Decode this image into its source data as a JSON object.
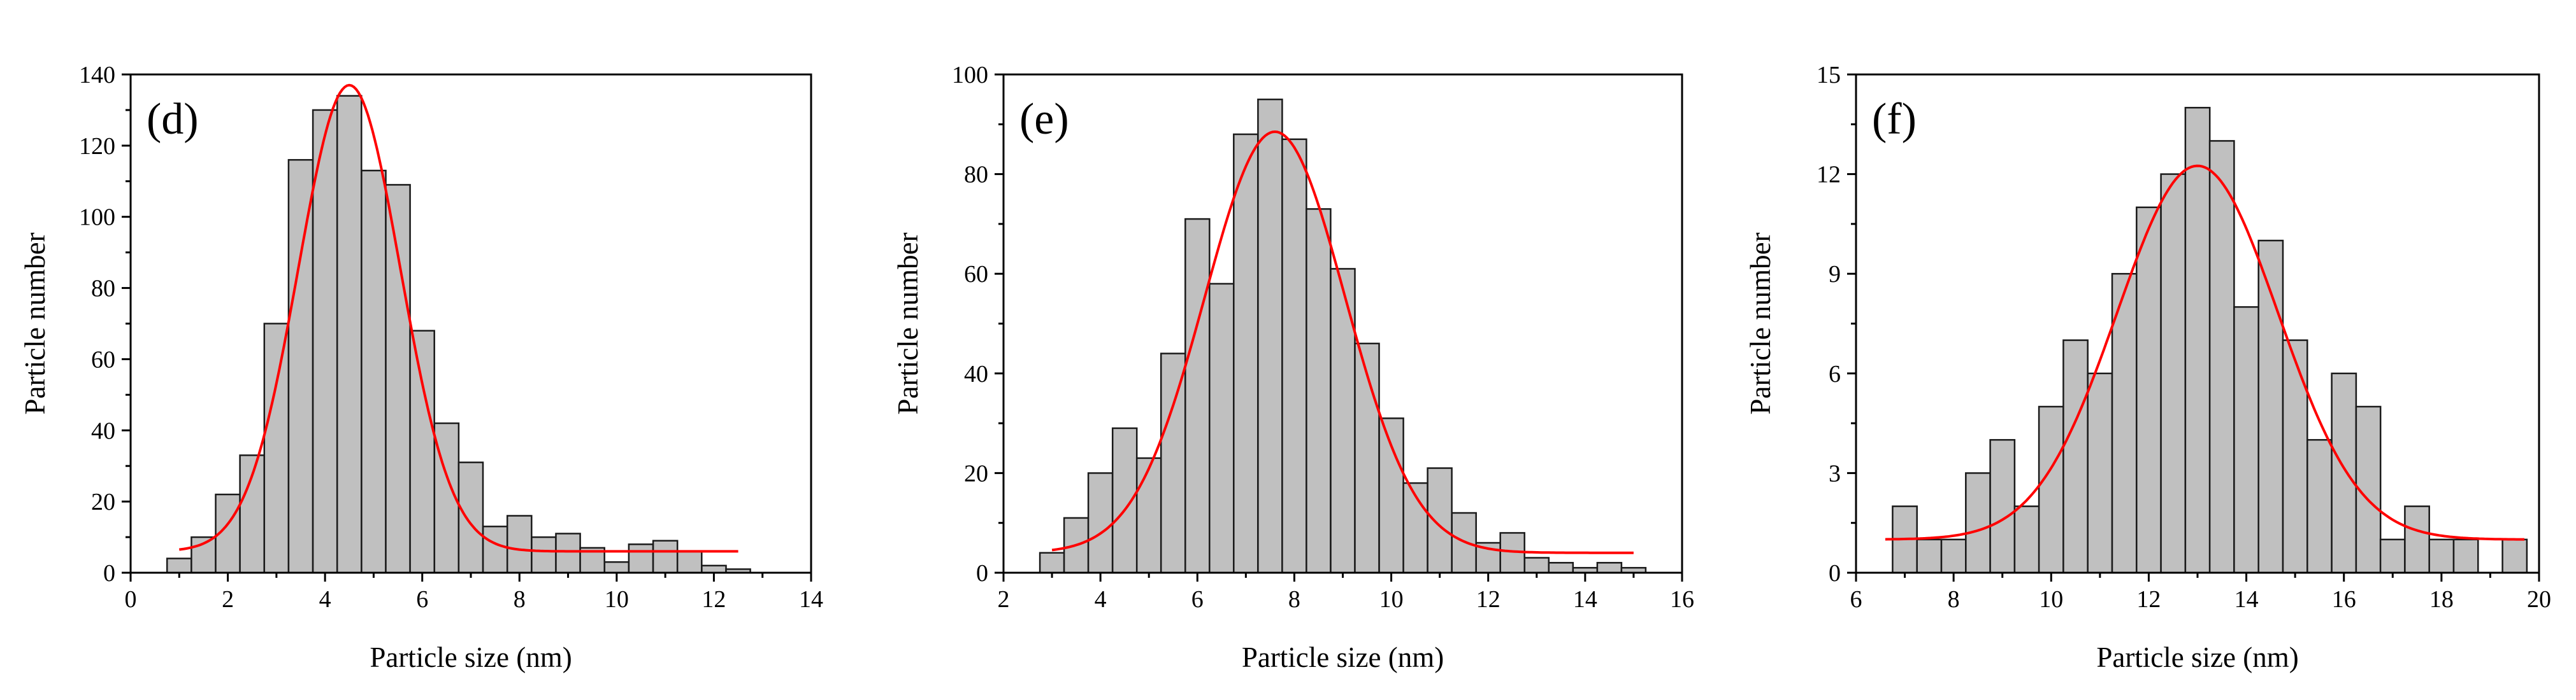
{
  "chart_data": [
    {
      "type": "bar",
      "panel_label": "(d)",
      "xlabel": "Particle size (nm)",
      "ylabel": "Particle number",
      "xlim": [
        0,
        14
      ],
      "ylim": [
        0,
        140
      ],
      "xticks": [
        0,
        2,
        4,
        6,
        8,
        10,
        12,
        14
      ],
      "yticks": [
        0,
        20,
        40,
        60,
        80,
        100,
        120,
        140
      ],
      "bin_width": 0.5,
      "bins": [
        {
          "x": 1.0,
          "value": 4
        },
        {
          "x": 1.5,
          "value": 10
        },
        {
          "x": 2.0,
          "value": 22
        },
        {
          "x": 2.5,
          "value": 33
        },
        {
          "x": 3.0,
          "value": 70
        },
        {
          "x": 3.5,
          "value": 116
        },
        {
          "x": 4.0,
          "value": 130
        },
        {
          "x": 4.5,
          "value": 134
        },
        {
          "x": 5.0,
          "value": 113
        },
        {
          "x": 5.5,
          "value": 109
        },
        {
          "x": 6.0,
          "value": 68
        },
        {
          "x": 6.5,
          "value": 42
        },
        {
          "x": 7.0,
          "value": 31
        },
        {
          "x": 7.5,
          "value": 13
        },
        {
          "x": 8.0,
          "value": 16
        },
        {
          "x": 8.5,
          "value": 10
        },
        {
          "x": 9.0,
          "value": 11
        },
        {
          "x": 9.5,
          "value": 7
        },
        {
          "x": 10.0,
          "value": 3
        },
        {
          "x": 10.5,
          "value": 8
        },
        {
          "x": 11.0,
          "value": 9
        },
        {
          "x": 11.5,
          "value": 6
        },
        {
          "x": 12.0,
          "value": 2
        },
        {
          "x": 12.5,
          "value": 1
        }
      ],
      "fit": {
        "type": "gaussian",
        "baseline": 6,
        "amplitude": 131,
        "center": 4.5,
        "sigma": 1.05,
        "x_range": [
          1.0,
          12.5
        ]
      }
    },
    {
      "type": "bar",
      "panel_label": "(e)",
      "xlabel": "Particle size (nm)",
      "ylabel": "Particle number",
      "xlim": [
        2,
        16
      ],
      "ylim": [
        0,
        100
      ],
      "xticks": [
        2,
        4,
        6,
        8,
        10,
        12,
        14,
        16
      ],
      "yticks": [
        0,
        20,
        40,
        60,
        80,
        100
      ],
      "bin_width": 0.5,
      "bins": [
        {
          "x": 3.0,
          "value": 4
        },
        {
          "x": 3.5,
          "value": 11
        },
        {
          "x": 4.0,
          "value": 20
        },
        {
          "x": 4.5,
          "value": 29
        },
        {
          "x": 5.0,
          "value": 23
        },
        {
          "x": 5.5,
          "value": 44
        },
        {
          "x": 6.0,
          "value": 71
        },
        {
          "x": 6.5,
          "value": 58
        },
        {
          "x": 7.0,
          "value": 88
        },
        {
          "x": 7.5,
          "value": 95
        },
        {
          "x": 8.0,
          "value": 87
        },
        {
          "x": 8.5,
          "value": 73
        },
        {
          "x": 9.0,
          "value": 61
        },
        {
          "x": 9.5,
          "value": 46
        },
        {
          "x": 10.0,
          "value": 31
        },
        {
          "x": 10.5,
          "value": 18
        },
        {
          "x": 11.0,
          "value": 21
        },
        {
          "x": 11.5,
          "value": 12
        },
        {
          "x": 12.0,
          "value": 6
        },
        {
          "x": 12.5,
          "value": 8
        },
        {
          "x": 13.0,
          "value": 3
        },
        {
          "x": 13.5,
          "value": 2
        },
        {
          "x": 14.0,
          "value": 1
        },
        {
          "x": 14.5,
          "value": 2
        },
        {
          "x": 15.0,
          "value": 1
        }
      ],
      "fit": {
        "type": "gaussian",
        "baseline": 4,
        "amplitude": 84.5,
        "center": 7.6,
        "sigma": 1.45,
        "x_range": [
          3.0,
          15.0
        ]
      }
    },
    {
      "type": "bar",
      "panel_label": "(f)",
      "xlabel": "Particle size (nm)",
      "ylabel": "Particle number",
      "xlim": [
        6,
        20
      ],
      "ylim": [
        0,
        15
      ],
      "xticks": [
        6,
        8,
        10,
        12,
        14,
        16,
        18,
        20
      ],
      "yticks": [
        0,
        3,
        6,
        9,
        12,
        15
      ],
      "bin_width": 0.5,
      "bins": [
        {
          "x": 7.0,
          "value": 2
        },
        {
          "x": 7.5,
          "value": 1
        },
        {
          "x": 8.0,
          "value": 1
        },
        {
          "x": 8.5,
          "value": 3
        },
        {
          "x": 9.0,
          "value": 4
        },
        {
          "x": 9.5,
          "value": 2
        },
        {
          "x": 10.0,
          "value": 5
        },
        {
          "x": 10.5,
          "value": 7
        },
        {
          "x": 11.0,
          "value": 6
        },
        {
          "x": 11.5,
          "value": 9
        },
        {
          "x": 12.0,
          "value": 11
        },
        {
          "x": 12.5,
          "value": 12
        },
        {
          "x": 13.0,
          "value": 14
        },
        {
          "x": 13.5,
          "value": 13
        },
        {
          "x": 14.0,
          "value": 8
        },
        {
          "x": 14.5,
          "value": 10
        },
        {
          "x": 15.0,
          "value": 7
        },
        {
          "x": 15.5,
          "value": 4
        },
        {
          "x": 16.0,
          "value": 6
        },
        {
          "x": 16.5,
          "value": 5
        },
        {
          "x": 17.0,
          "value": 1
        },
        {
          "x": 17.5,
          "value": 2
        },
        {
          "x": 18.0,
          "value": 1
        },
        {
          "x": 18.5,
          "value": 1
        },
        {
          "x": 19.5,
          "value": 1
        }
      ],
      "fit": {
        "type": "gaussian",
        "baseline": 1,
        "amplitude": 11.25,
        "center": 13.0,
        "sigma": 1.65,
        "x_range": [
          6.6,
          19.7
        ]
      }
    }
  ],
  "colors": {
    "bar_fill": "#c0c0c0",
    "bar_edge": "#1a1a1a",
    "fit_line": "#ff0000",
    "axis": "#000000"
  }
}
